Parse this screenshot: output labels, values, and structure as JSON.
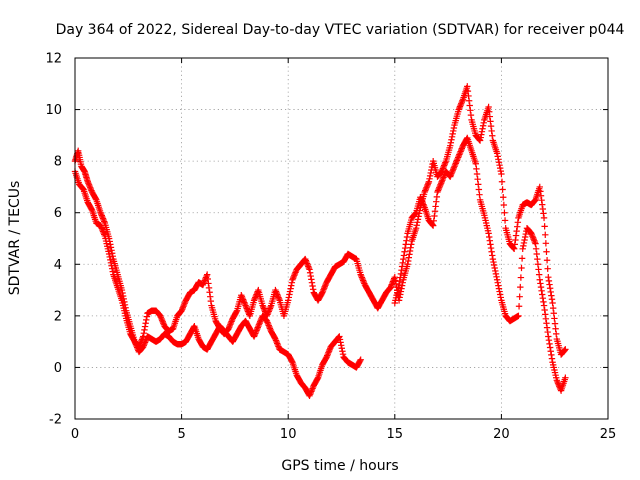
{
  "chart_data": {
    "type": "scatter",
    "title": "Day 364 of 2022, Sidereal Day-to-day VTEC variation (SDTVAR) for receiver p044",
    "xlabel": "GPS time / hours",
    "ylabel": "SDTVAR / TECUs",
    "xlim": [
      0,
      25
    ],
    "ylim": [
      -2,
      12
    ],
    "xticks": [
      0,
      5,
      10,
      15,
      20,
      25
    ],
    "yticks": [
      -2,
      0,
      2,
      4,
      6,
      8,
      10,
      12
    ],
    "grid": true,
    "marker": "+",
    "color": "#ff0000",
    "series": [
      {
        "name": "SDTVAR",
        "x": [
          0.0,
          0.15,
          0.3,
          0.45,
          0.6,
          0.8,
          1.0,
          1.2,
          1.4,
          1.6,
          1.8,
          2.0,
          2.2,
          2.4,
          2.6,
          2.8,
          3.0,
          3.2,
          3.4,
          3.6,
          3.8,
          4.0,
          4.2,
          4.4,
          4.6,
          4.8,
          5.0,
          5.2,
          5.4,
          5.6,
          5.8,
          6.0,
          6.2,
          6.4,
          6.6,
          6.8,
          7.0,
          7.2,
          7.4,
          7.6,
          7.8,
          8.0,
          8.2,
          8.4,
          8.6,
          8.8,
          9.0,
          9.2,
          9.4,
          9.6,
          9.8,
          10.0,
          10.2,
          10.4,
          10.6,
          10.8,
          11.0,
          11.2,
          11.4,
          11.6,
          11.8,
          12.0,
          12.2,
          12.4,
          12.6,
          12.8,
          13.0,
          13.2,
          13.4,
          13.6,
          13.8,
          14.0,
          14.2,
          14.4,
          14.6,
          14.8,
          15.0,
          15.2,
          15.4,
          15.6,
          15.8,
          16.0,
          16.2,
          16.4,
          16.6,
          16.8,
          17.0,
          17.2,
          17.4,
          17.6,
          17.8,
          18.0,
          18.2,
          18.4,
          18.6,
          18.8,
          19.0,
          19.2,
          19.4,
          19.6,
          19.8,
          20.0,
          20.2,
          20.4,
          20.6,
          20.8,
          21.0,
          21.2,
          21.4,
          21.6,
          21.8,
          22.0,
          22.2,
          22.4,
          22.6,
          22.8,
          23.0
        ],
        "y": [
          8.0,
          8.4,
          7.8,
          7.6,
          7.2,
          6.8,
          6.5,
          6.0,
          5.6,
          5.0,
          4.2,
          3.6,
          3.0,
          2.2,
          1.6,
          1.0,
          0.8,
          1.2,
          2.1,
          2.2,
          2.2,
          2.0,
          1.6,
          1.4,
          1.5,
          2.0,
          2.2,
          2.6,
          2.9,
          3.0,
          3.3,
          3.2,
          3.6,
          2.4,
          1.8,
          1.5,
          1.3,
          1.5,
          1.9,
          2.2,
          2.8,
          2.4,
          2.0,
          2.6,
          3.0,
          2.4,
          2.0,
          2.4,
          3.0,
          2.6,
          2.0,
          2.6,
          3.4,
          3.8,
          4.0,
          4.2,
          3.8,
          2.9,
          2.6,
          2.9,
          3.3,
          3.6,
          3.9,
          4.0,
          4.1,
          4.4,
          4.3,
          4.2,
          3.6,
          3.2,
          2.9,
          2.6,
          2.3,
          2.6,
          2.9,
          3.1,
          3.5,
          2.6,
          3.4,
          4.0,
          4.9,
          5.4,
          6.2,
          6.8,
          7.2,
          8.0,
          7.4,
          7.6,
          8.0,
          8.6,
          9.4,
          10.0,
          10.4,
          10.9,
          9.6,
          9.0,
          8.8,
          9.6,
          10.1,
          8.8,
          8.3,
          7.5,
          5.4,
          4.8,
          4.6,
          5.8,
          6.3,
          6.4,
          6.3,
          6.5,
          7.0,
          5.8,
          3.5,
          2.5,
          1.1,
          0.5,
          0.7
        ]
      },
      {
        "name": "SDTVAR",
        "x": [
          0.0,
          0.2,
          0.4,
          0.6,
          0.8,
          1.0,
          1.2,
          1.4,
          1.6,
          1.8,
          2.0,
          2.2,
          2.4,
          2.6,
          2.8,
          3.0,
          3.2,
          3.4,
          3.6,
          3.8,
          4.0,
          4.2,
          4.4,
          4.6,
          4.8,
          5.0,
          5.2,
          5.4,
          5.6,
          5.8,
          6.0,
          6.2,
          6.4,
          6.6,
          6.8,
          7.0,
          7.2,
          7.4,
          7.6,
          7.8,
          8.0,
          8.2,
          8.4,
          8.6,
          8.8,
          9.0,
          9.2,
          9.4,
          9.6,
          9.8,
          10.0,
          10.2,
          10.4,
          10.6,
          10.8,
          11.0,
          11.2,
          11.4,
          11.6,
          11.8,
          12.0,
          12.2,
          12.4,
          12.6,
          12.8,
          13.0,
          13.2,
          13.4,
          15.0,
          15.2,
          15.4,
          15.6,
          15.8,
          16.0,
          16.2,
          16.4,
          16.6,
          16.8,
          17.0,
          17.2,
          17.4,
          17.6,
          17.8,
          18.0,
          18.2,
          18.4,
          18.6,
          18.8,
          19.0,
          19.2,
          19.4,
          19.6,
          19.8,
          20.0,
          20.2,
          20.4,
          20.6,
          20.8,
          21.0,
          21.2,
          21.4,
          21.6,
          21.8,
          22.0,
          22.2,
          22.4,
          22.6,
          22.8,
          23.0
        ],
        "y": [
          7.6,
          7.1,
          6.9,
          6.4,
          6.1,
          5.6,
          5.5,
          5.1,
          4.4,
          3.6,
          3.1,
          2.6,
          1.9,
          1.3,
          1.0,
          0.6,
          0.8,
          1.2,
          1.1,
          1.0,
          1.1,
          1.3,
          1.2,
          1.0,
          0.9,
          0.9,
          1.0,
          1.3,
          1.6,
          1.1,
          0.8,
          0.7,
          1.0,
          1.3,
          1.6,
          1.4,
          1.2,
          1.0,
          1.3,
          1.6,
          1.8,
          1.5,
          1.2,
          1.6,
          2.0,
          1.8,
          1.4,
          1.1,
          0.7,
          0.6,
          0.5,
          0.2,
          -0.3,
          -0.6,
          -0.8,
          -1.1,
          -0.7,
          -0.4,
          0.1,
          0.4,
          0.8,
          1.0,
          1.2,
          0.4,
          0.2,
          0.1,
          0.0,
          0.3,
          2.5,
          3.2,
          4.2,
          5.2,
          5.8,
          6.0,
          6.6,
          6.2,
          5.7,
          5.5,
          6.8,
          7.2,
          7.6,
          7.4,
          7.8,
          8.2,
          8.6,
          8.9,
          8.4,
          7.9,
          6.5,
          5.9,
          5.2,
          4.2,
          3.4,
          2.6,
          2.0,
          1.8,
          1.9,
          2.0,
          4.6,
          5.4,
          5.2,
          4.8,
          3.4,
          2.4,
          1.2,
          0.2,
          -0.5,
          -0.9,
          -0.4
        ]
      }
    ]
  }
}
